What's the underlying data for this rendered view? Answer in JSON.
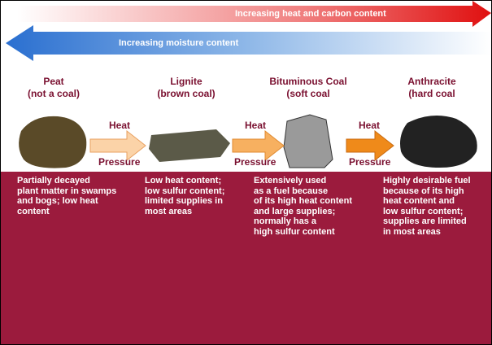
{
  "arrows": {
    "heat": "Increasing heat and carbon content",
    "moisture": "Increasing moisture content"
  },
  "coals": [
    {
      "name": "Peat",
      "note": "(not a coal)"
    },
    {
      "name": "Lignite",
      "note": "(brown coal)"
    },
    {
      "name": "Bituminous Coal",
      "note": "(soft coal"
    },
    {
      "name": "Anthracite",
      "note": "(hard coal"
    }
  ],
  "transitions": [
    {
      "top": "Heat",
      "bottom": "Pressure"
    },
    {
      "top": "Heat",
      "bottom": "Pressure"
    },
    {
      "top": "Heat",
      "bottom": "Pressure"
    }
  ],
  "descriptions": [
    {
      "lines": [
        "Partially decayed",
        "plant matter in swamps",
        "and bogs; low heat",
        "content"
      ]
    },
    {
      "lines": [
        "Low heat content;",
        "low sulfur content;",
        "limited supplies in",
        "most areas"
      ]
    },
    {
      "lines": [
        "Extensively used",
        "as a fuel because",
        "of its high heat content",
        "and large supplies;",
        "normally has a",
        "high sulfur content"
      ]
    },
    {
      "lines": [
        "Highly desirable fuel",
        "because of its high",
        "heat content and",
        "low sulfur content;",
        "supplies are limited",
        "in most areas"
      ]
    }
  ]
}
